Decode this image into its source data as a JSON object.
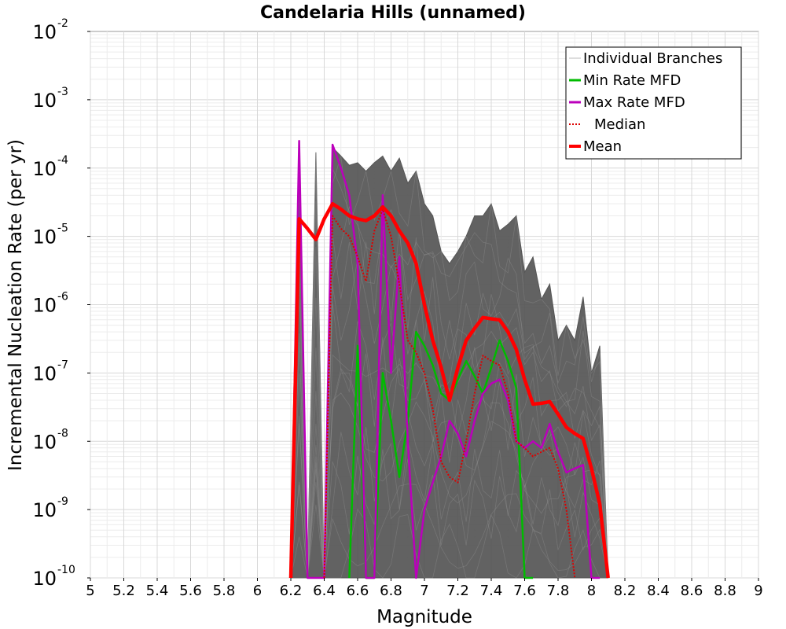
{
  "chart_data": {
    "type": "line",
    "title": "Candelaria Hills (unnamed)",
    "xlabel": "Magnitude",
    "ylabel": "Incremental Nucleation Rate (per yr)",
    "xlim": [
      5,
      9
    ],
    "ylim": [
      1e-10,
      0.01
    ],
    "yscale": "log",
    "grid": true,
    "legend_position": "top-right",
    "x_ticks": [
      "5",
      "5.2",
      "5.4",
      "5.6",
      "5.8",
      "6",
      "6.2",
      "6.4",
      "6.6",
      "6.8",
      "7",
      "7.2",
      "7.4",
      "7.6",
      "7.8",
      "8",
      "8.2",
      "8.4",
      "8.6",
      "8.8",
      "9"
    ],
    "y_ticks": [
      {
        "base": "10",
        "exp": "-2"
      },
      {
        "base": "10",
        "exp": "-3"
      },
      {
        "base": "10",
        "exp": "-4"
      },
      {
        "base": "10",
        "exp": "-5"
      },
      {
        "base": "10",
        "exp": "-6"
      },
      {
        "base": "10",
        "exp": "-7"
      },
      {
        "base": "10",
        "exp": "-8"
      },
      {
        "base": "10",
        "exp": "-9"
      },
      {
        "base": "10",
        "exp": "-10"
      }
    ],
    "series": [
      {
        "name": "Individual Branches",
        "color": "#555555",
        "style": "band",
        "x": [
          6.2,
          6.25,
          6.3,
          6.35,
          6.4,
          6.45,
          6.5,
          6.55,
          6.6,
          6.65,
          6.7,
          6.75,
          6.8,
          6.85,
          6.9,
          6.95,
          7.0,
          7.05,
          7.1,
          7.15,
          7.2,
          7.25,
          7.3,
          7.35,
          7.4,
          7.45,
          7.5,
          7.55,
          7.6,
          7.65,
          7.7,
          7.75,
          7.8,
          7.85,
          7.9,
          7.95,
          8.0,
          8.05,
          8.1
        ],
        "upper": [
          1e-10,
          0.00012,
          1e-10,
          0.00017,
          1e-10,
          0.0002,
          0.00015,
          0.00011,
          0.00012,
          9e-05,
          0.00012,
          0.00015,
          9e-05,
          0.00014,
          6e-05,
          9e-05,
          3e-05,
          2e-05,
          6e-06,
          4e-06,
          6e-06,
          1e-05,
          2e-05,
          2e-05,
          3e-05,
          1.2e-05,
          1.5e-05,
          2e-05,
          3e-06,
          5e-06,
          1.2e-06,
          2e-06,
          3e-07,
          5e-07,
          3e-07,
          1.3e-06,
          1e-07,
          2.5e-07,
          1e-10
        ],
        "lower": [
          1e-10,
          1e-10,
          1e-10,
          1e-10,
          1e-10,
          1e-10,
          1e-10,
          1e-10,
          1e-10,
          1e-10,
          1e-10,
          1e-10,
          1e-10,
          1e-10,
          1e-10,
          1e-10,
          1e-10,
          1e-10,
          1e-10,
          1e-10,
          1e-10,
          1e-10,
          1e-10,
          1e-10,
          1e-10,
          1e-10,
          1e-10,
          1e-10,
          1e-10,
          1e-10,
          1e-10,
          1e-10,
          1e-10,
          1e-10,
          1e-10,
          1e-10,
          1e-10,
          1e-10,
          1e-10
        ]
      },
      {
        "name": "Min Rate MFD",
        "color": "#00bb00",
        "style": "solid",
        "x": [
          6.55,
          6.6,
          6.65,
          6.7,
          6.75,
          6.8,
          6.85,
          6.9,
          6.95,
          7.0,
          7.05,
          7.1,
          7.15,
          7.2,
          7.25,
          7.3,
          7.35,
          7.4,
          7.45,
          7.5,
          7.55,
          7.6,
          7.65
        ],
        "y": [
          1e-10,
          2.5e-07,
          1e-10,
          1e-10,
          1e-07,
          2e-08,
          3e-09,
          2e-08,
          4e-07,
          2.5e-07,
          1.3e-07,
          5e-08,
          4e-08,
          8e-08,
          1.5e-07,
          9e-08,
          5e-08,
          1.2e-07,
          3e-07,
          1.5e-07,
          6e-08,
          1e-10,
          1e-10
        ]
      },
      {
        "name": "Max Rate MFD",
        "color": "#bb00bb",
        "style": "solid",
        "x": [
          6.2,
          6.25,
          6.3,
          6.35,
          6.4,
          6.45,
          6.5,
          6.55,
          6.6,
          6.65,
          6.7,
          6.75,
          6.8,
          6.85,
          6.9,
          6.95,
          7.0,
          7.05,
          7.1,
          7.15,
          7.2,
          7.25,
          7.3,
          7.35,
          7.4,
          7.45,
          7.5,
          7.55,
          7.6,
          7.65,
          7.7,
          7.75,
          7.8,
          7.85,
          7.9,
          7.95,
          8.0,
          8.05
        ],
        "y": [
          1e-10,
          0.00025,
          1e-10,
          1e-10,
          1e-10,
          0.00022,
          0.0001,
          4e-05,
          4e-06,
          1e-10,
          1e-10,
          4e-05,
          1e-07,
          5e-06,
          1e-08,
          1e-10,
          1e-09,
          2.5e-09,
          6e-09,
          2e-08,
          1.3e-08,
          6e-09,
          2e-08,
          5e-08,
          7e-08,
          8e-08,
          4e-08,
          1e-08,
          8e-09,
          1e-08,
          8e-09,
          1.8e-08,
          7e-09,
          3.5e-09,
          4e-09,
          4.5e-09,
          1e-10,
          1e-10
        ]
      },
      {
        "name": "Median",
        "color": "#dd0000",
        "style": "dotted",
        "x": [
          6.4,
          6.45,
          6.5,
          6.55,
          6.6,
          6.65,
          6.7,
          6.75,
          6.8,
          6.85,
          6.9,
          6.95,
          7.0,
          7.05,
          7.1,
          7.15,
          7.2,
          7.25,
          7.3,
          7.35,
          7.4,
          7.45,
          7.5,
          7.55,
          7.6,
          7.65,
          7.7,
          7.75,
          7.8,
          7.85,
          7.9
        ],
        "y": [
          1e-10,
          2e-05,
          1.3e-05,
          1e-05,
          5e-06,
          2.2e-06,
          1.2e-05,
          2.5e-05,
          1e-05,
          2e-06,
          3e-07,
          2e-07,
          1e-07,
          3e-08,
          5e-09,
          3e-09,
          2.5e-09,
          1e-08,
          5e-08,
          1.8e-07,
          1.5e-07,
          1.3e-07,
          5e-08,
          1e-08,
          8e-09,
          6e-09,
          7e-09,
          8e-09,
          4e-09,
          1e-09,
          1e-10
        ]
      },
      {
        "name": "Mean",
        "color": "#ff0000",
        "style": "solid-bold",
        "x": [
          6.2,
          6.25,
          6.3,
          6.35,
          6.4,
          6.45,
          6.5,
          6.55,
          6.6,
          6.65,
          6.7,
          6.75,
          6.8,
          6.85,
          6.9,
          6.95,
          7.0,
          7.05,
          7.1,
          7.15,
          7.2,
          7.25,
          7.3,
          7.35,
          7.4,
          7.45,
          7.5,
          7.55,
          7.6,
          7.65,
          7.7,
          7.75,
          7.8,
          7.85,
          7.9,
          7.95,
          8.0,
          8.05,
          8.1
        ],
        "y": [
          1e-10,
          1.8e-05,
          1.3e-05,
          9e-06,
          1.8e-05,
          3e-05,
          2.5e-05,
          2e-05,
          1.8e-05,
          1.7e-05,
          2e-05,
          2.7e-05,
          2e-05,
          1.2e-05,
          8e-06,
          4e-06,
          1e-06,
          3e-07,
          1.2e-07,
          4e-08,
          1.2e-07,
          3e-07,
          4.5e-07,
          6.5e-07,
          6.2e-07,
          6e-07,
          4e-07,
          2.2e-07,
          8e-08,
          3.5e-08,
          3.6e-08,
          3.8e-08,
          2.5e-08,
          1.6e-08,
          1.3e-08,
          1.1e-08,
          4e-09,
          1.2e-09,
          1e-10
        ]
      }
    ]
  }
}
